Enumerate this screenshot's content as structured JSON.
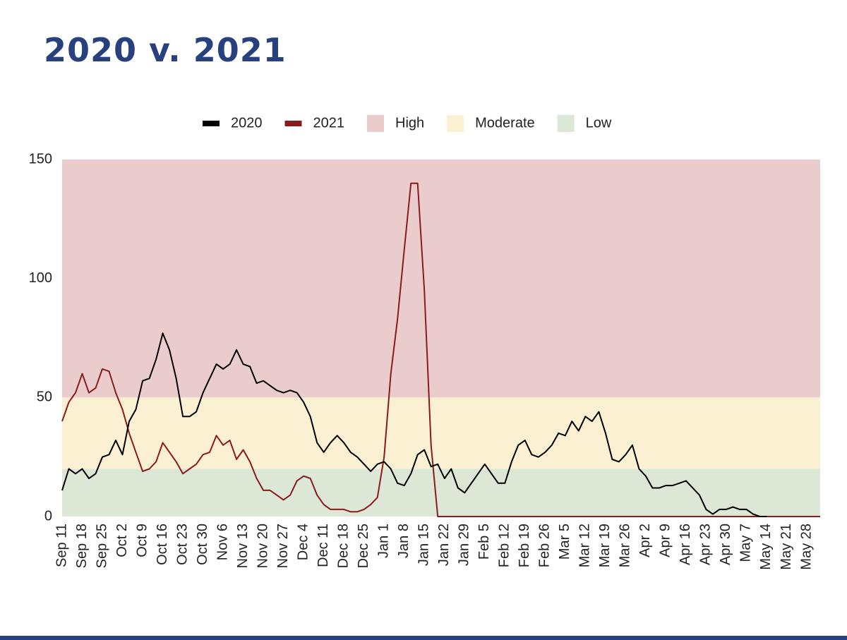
{
  "header": {
    "title": "2020 v. 2021"
  },
  "chart_data": {
    "type": "line",
    "categories": [
      "Sep 11",
      null,
      null,
      "Sep 18",
      null,
      null,
      "Sep 25",
      null,
      null,
      "Oct 2",
      null,
      null,
      "Oct 9",
      null,
      null,
      "Oct 16",
      null,
      null,
      "Oct 23",
      null,
      null,
      "Oct 30",
      null,
      null,
      "Nov 6",
      null,
      null,
      "Nov 13",
      null,
      null,
      "Nov 20",
      null,
      null,
      "Nov 27",
      null,
      null,
      "Dec 4",
      null,
      null,
      "Dec 11",
      null,
      null,
      "Dec 18",
      null,
      null,
      "Dec 25",
      null,
      null,
      "Jan 1",
      null,
      null,
      "Jan 8",
      null,
      null,
      "Jan 15",
      null,
      null,
      "Jan 22",
      null,
      null,
      "Jan 29",
      null,
      null,
      "Feb 5",
      null,
      null,
      "Feb 12",
      null,
      null,
      "Feb 19",
      null,
      null,
      "Feb 26",
      null,
      null,
      "Mar 5",
      null,
      null,
      "Mar 12",
      null,
      null,
      "Mar 19",
      null,
      null,
      "Mar 26",
      null,
      null,
      "Apr 2",
      null,
      null,
      "Apr 9",
      null,
      null,
      "Apr 16",
      null,
      null,
      "Apr 23",
      null,
      null,
      "Apr 30",
      null,
      null,
      "May 7",
      null,
      null,
      "May 14",
      null,
      null,
      "May 21",
      null,
      null,
      "May 28",
      null,
      null
    ],
    "series": [
      {
        "name": "2020",
        "color": "#000000",
        "values": [
          11,
          20,
          18,
          20,
          16,
          18,
          25,
          26,
          32,
          26,
          40,
          45,
          57,
          58,
          66,
          77,
          70,
          58,
          42,
          42,
          44,
          52,
          58,
          64,
          62,
          64,
          70,
          64,
          63,
          56,
          57,
          55,
          53,
          52,
          53,
          52,
          48,
          42,
          31,
          27,
          31,
          34,
          31,
          27,
          25,
          22,
          19,
          22,
          23,
          20,
          14,
          13,
          18,
          26,
          28,
          21,
          22,
          16,
          20,
          12,
          10,
          14,
          18,
          22,
          18,
          14,
          14,
          23,
          30,
          32,
          26,
          25,
          27,
          30,
          35,
          34,
          40,
          36,
          42,
          40,
          44,
          35,
          24,
          23,
          26,
          30,
          20,
          17,
          12,
          12,
          13,
          13,
          14,
          15,
          12,
          9,
          3,
          1,
          3,
          3,
          4,
          3,
          3,
          1,
          0,
          0,
          null,
          null,
          null,
          null,
          null,
          null,
          null,
          null
        ]
      },
      {
        "name": "2021",
        "color": "#8b1a1a",
        "values": [
          40,
          48,
          52,
          60,
          52,
          54,
          62,
          61,
          52,
          45,
          35,
          27,
          19,
          20,
          23,
          31,
          27,
          23,
          18,
          20,
          22,
          26,
          27,
          34,
          30,
          32,
          24,
          28,
          23,
          16,
          11,
          11,
          9,
          7,
          9,
          15,
          17,
          16,
          9,
          5,
          3,
          3,
          3,
          2,
          2,
          3,
          5,
          8,
          25,
          60,
          83,
          112,
          140,
          140,
          95,
          30,
          0,
          0,
          0,
          0,
          0,
          0,
          0,
          0,
          0,
          0,
          0,
          0,
          0,
          0,
          0,
          0,
          0,
          0,
          0,
          0,
          0,
          0,
          0,
          0,
          0,
          0,
          0,
          0,
          0,
          0,
          0,
          0,
          0,
          0,
          0,
          0,
          0,
          0,
          0,
          0,
          0,
          0,
          0,
          0,
          0,
          0,
          0,
          0,
          0,
          0,
          0,
          0,
          0,
          0,
          0,
          0,
          0,
          0
        ]
      }
    ],
    "bands": [
      {
        "name": "High",
        "color": "#ebcccd",
        "range": [
          50,
          150
        ]
      },
      {
        "name": "Moderate",
        "color": "#fbf0d2",
        "range": [
          20,
          50
        ]
      },
      {
        "name": "Low",
        "color": "#dce7d6",
        "range": [
          0,
          20
        ]
      }
    ],
    "ylim": [
      0,
      150
    ],
    "yticks": [
      0,
      50,
      100,
      150
    ],
    "grid": false
  }
}
